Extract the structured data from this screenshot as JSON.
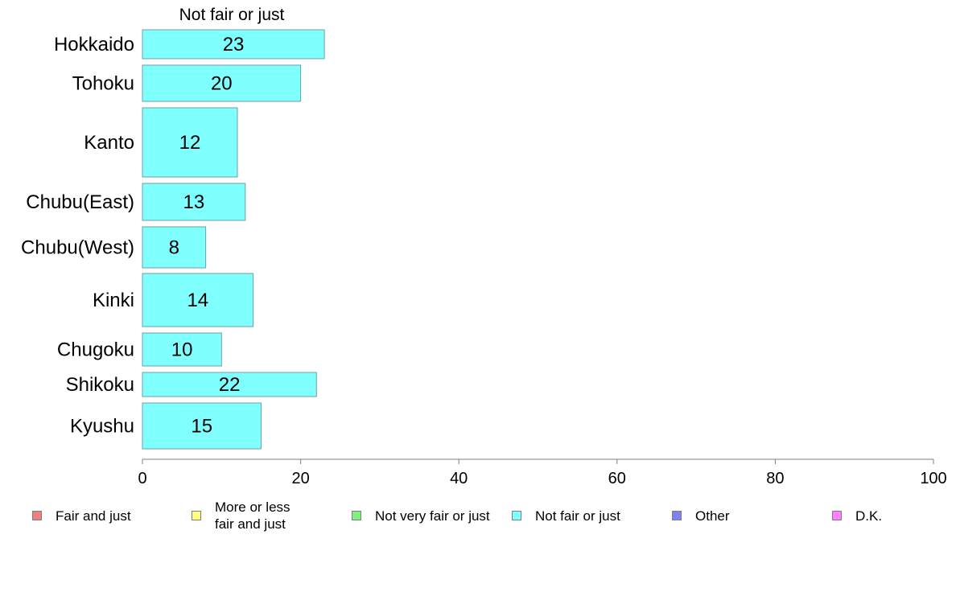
{
  "chart_data": {
    "type": "bar",
    "orientation": "horizontal",
    "title": "Not fair or just",
    "categories": [
      "Hokkaido",
      "Tohoku",
      "Kanto",
      "Chubu(East)",
      "Chubu(West)",
      "Kinki",
      "Chugoku",
      "Shikoku",
      "Kyushu"
    ],
    "series": [
      {
        "name": "Not fair or just",
        "values": [
          23,
          20,
          12,
          13,
          8,
          14,
          10,
          22,
          15
        ],
        "color": "#80ffff"
      }
    ],
    "xlim": [
      0,
      100
    ],
    "xticks": [
      0,
      20,
      40,
      60,
      80,
      100
    ],
    "grid": false,
    "legend_position": "bottom",
    "legend": [
      {
        "label": "Fair and just",
        "color": "#f08080"
      },
      {
        "label": "More or less\nfair and just",
        "color": "#ffff80"
      },
      {
        "label": "Not very fair or just",
        "color": "#80f080"
      },
      {
        "label": "Not fair or just",
        "color": "#80ffff"
      },
      {
        "label": "Other",
        "color": "#8080f0"
      },
      {
        "label": "D.K.",
        "color": "#ff80ff"
      }
    ]
  }
}
